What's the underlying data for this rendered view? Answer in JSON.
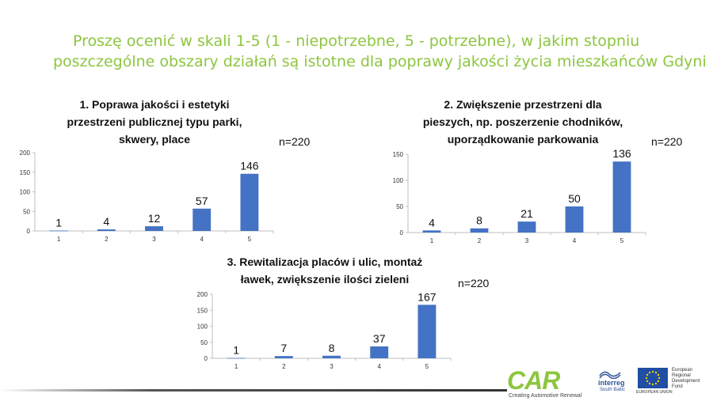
{
  "title": {
    "line1": "Proszę ocenić w skali 1-5 (1 - niepotrzebne, 5 - potrzebne), w jakim stopniu",
    "line2": "poszczególne obszary działań są istotne dla poprawy jakości życia mieszkańców Gdyni",
    "color": "#8dc63f"
  },
  "chart_data": [
    {
      "type": "bar",
      "title_lines": [
        "1. Poprawa jakości i estetyki",
        "przestrzeni publicznej typu parki,",
        "skwery, place"
      ],
      "n_label": "n=220",
      "categories": [
        "1",
        "2",
        "3",
        "4",
        "5"
      ],
      "values": [
        1,
        4,
        12,
        57,
        146
      ],
      "ylim": [
        0,
        200
      ],
      "yticks": [
        0,
        50,
        100,
        150,
        200
      ],
      "grid": false,
      "color": "#4472c4"
    },
    {
      "type": "bar",
      "title_lines": [
        "2. Zwiększenie przestrzeni dla",
        "pieszych, np. poszerzenie chodników,",
        "uporządkowanie parkowania"
      ],
      "n_label": "n=220",
      "categories": [
        "1",
        "2",
        "3",
        "4",
        "5"
      ],
      "values": [
        4,
        8,
        21,
        50,
        136
      ],
      "ylim": [
        0,
        150
      ],
      "yticks": [
        0,
        50,
        100,
        150
      ],
      "grid": false,
      "color": "#4472c4"
    },
    {
      "type": "bar",
      "title_lines": [
        "3. Rewitalizacja placów i ulic, montaż",
        "ławek, zwiększenie ilości zieleni"
      ],
      "n_label": "n=220",
      "categories": [
        "1",
        "2",
        "3",
        "4",
        "5"
      ],
      "values": [
        1,
        7,
        8,
        37,
        167
      ],
      "ylim": [
        0,
        200
      ],
      "yticks": [
        0,
        50,
        100,
        150,
        200
      ],
      "grid": false,
      "color": "#4472c4"
    }
  ],
  "footer": {
    "logo_car": "CAR",
    "logo_car_tagline": "Creating Automotive Renewal",
    "interreg_name": "interreg",
    "interreg_sub": "South Baltic",
    "eu_label": "EUROPEAN UNION",
    "eu_fund_lines": [
      "European",
      "Regional",
      "Development",
      "Fund"
    ]
  }
}
